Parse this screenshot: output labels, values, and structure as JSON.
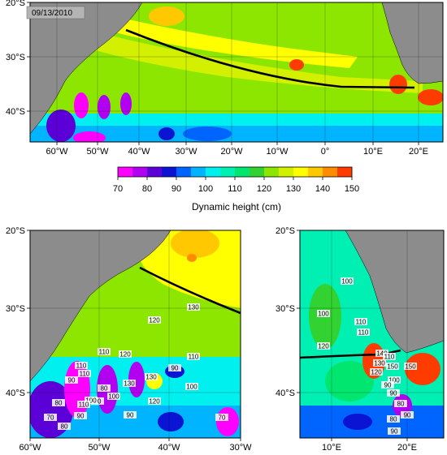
{
  "date_stamp": "09/13/2010",
  "colorbar": {
    "title": "Dynamic height (cm)",
    "tick_labels": [
      "70",
      "80",
      "90",
      "100",
      "110",
      "120",
      "130",
      "140",
      "150"
    ],
    "colors": [
      "#ff00ff",
      "#b200f0",
      "#5b00d6",
      "#0a14d2",
      "#0064ff",
      "#00b4ff",
      "#00f0f0",
      "#00f0b4",
      "#00e66e",
      "#32d232",
      "#8ce600",
      "#d2f000",
      "#ffff00",
      "#ffc800",
      "#ff8c00",
      "#ff3c00"
    ]
  },
  "colors": {
    "land": "#8c8c8c",
    "shelf": "#b4b4b4",
    "section_line": "#000000"
  },
  "top_map": {
    "lat_labels": [
      "20°S",
      "30°S",
      "40°S"
    ],
    "lon_labels": [
      "60°W",
      "50°W",
      "40°W",
      "30°W",
      "20°W",
      "10°W",
      "0°",
      "10°E",
      "20°E"
    ]
  },
  "left_map": {
    "lat_labels": [
      "20°S",
      "30°S",
      "40°S"
    ],
    "lon_labels": [
      "60°W",
      "50°W",
      "40°W",
      "30°W"
    ],
    "contour_labels": [
      "130",
      "120",
      "110",
      "110",
      "120",
      "130",
      "110",
      "90",
      "100",
      "90",
      "110",
      "100",
      "80",
      "90",
      "130",
      "100",
      "120",
      "90",
      "110",
      "80",
      "70",
      "90",
      "70",
      "80"
    ]
  },
  "right_map": {
    "lat_labels": [
      "20°S",
      "30°S",
      "40°S"
    ],
    "lon_labels": [
      "10°E",
      "20°E"
    ],
    "contour_labels": [
      "100",
      "100",
      "110",
      "110",
      "120",
      "140",
      "130",
      "120",
      "150",
      "150",
      "100",
      "110",
      "90",
      "80",
      "80",
      "90",
      "90",
      "90"
    ]
  }
}
